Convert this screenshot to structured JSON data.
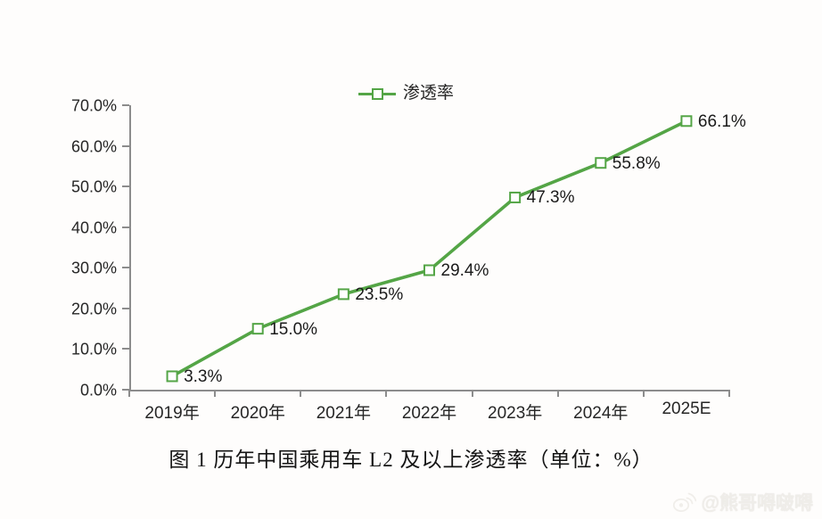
{
  "chart_data": {
    "type": "line",
    "title": "图 1  历年中国乘用车 L2 及以上渗透率（单位：%）",
    "legend": {
      "position": "top",
      "entries": [
        "渗透率"
      ]
    },
    "categories": [
      "2019年",
      "2020年",
      "2021年",
      "2022年",
      "2023年",
      "2024年",
      "2025E"
    ],
    "series": [
      {
        "name": "渗透率",
        "values": [
          3.3,
          15.0,
          23.5,
          29.4,
          47.3,
          55.8,
          66.1
        ]
      }
    ],
    "data_labels": [
      "3.3%",
      "15.0%",
      "23.5%",
      "29.4%",
      "47.3%",
      "55.8%",
      "66.1%"
    ],
    "ylim": [
      0,
      70
    ],
    "y_tick_step": 10,
    "y_tick_labels": [
      "0.0%",
      "10.0%",
      "20.0%",
      "30.0%",
      "40.0%",
      "50.0%",
      "60.0%",
      "70.0%"
    ],
    "grid": false,
    "line_color": "#54a546",
    "marker": "open-square",
    "marker_fill": "#ffffff"
  },
  "legend": {
    "label": "渗透率"
  },
  "title": {
    "text": "图 1  历年中国乘用车 L2 及以上渗透率（单位：%）"
  },
  "watermark": {
    "icon": "weibo-icon",
    "text": "@熊哥嘚啵嘚"
  }
}
